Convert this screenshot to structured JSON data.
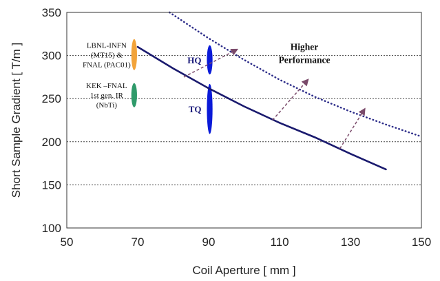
{
  "chart_data": {
    "type": "line",
    "title": "",
    "xlabel": "Coil Aperture [ mm ]",
    "ylabel": "Short Sample Gradient [ T/m ]",
    "xlim": [
      50,
      150
    ],
    "ylim": [
      100,
      350
    ],
    "xticks": [
      "50",
      "70",
      "90",
      "110",
      "130",
      "150"
    ],
    "yticks": [
      "100",
      "150",
      "200",
      "250",
      "300",
      "350"
    ],
    "grid": "horizontal dashed",
    "colors": {
      "solid_line": "#1a1a6e",
      "dotted_line": "#2e2e8a",
      "arrows": "#7a4a6a",
      "orange": "#f2a33a",
      "green": "#2f9a6a",
      "blue": "#0a1ad8"
    },
    "series": [
      {
        "style": "solid",
        "x": [
          70,
          80,
          90,
          100,
          110,
          120,
          130,
          140
        ],
        "y": [
          310,
          285,
          262,
          241,
          222,
          205,
          186,
          168
        ]
      },
      {
        "style": "dotted",
        "x": [
          79,
          90,
          100,
          110,
          120,
          130,
          140,
          150
        ],
        "y": [
          350,
          320,
          295,
          272,
          252,
          235,
          220,
          206
        ]
      }
    ],
    "ellipses": [
      {
        "label": "LBNL-INFN (MT15) & FNAL (PAC01)",
        "lines": [
          "LBNL-INFN",
          "(MT15) &",
          "FNAL (PAC01)"
        ],
        "x": 69,
        "y": 301,
        "x_half": 0.8,
        "y_half": 18,
        "color": "#f2a33a"
      },
      {
        "label": "KEK –FNAL 1st gen. IR (NbTi)",
        "lines": [
          "KEK –FNAL",
          "1st gen. IR",
          "(NbTi)"
        ],
        "x": 69,
        "y": 254,
        "x_half": 0.8,
        "y_half": 14,
        "color": "#2f9a6a"
      },
      {
        "label": "HQ",
        "x": 90.3,
        "y": 295,
        "x_half": 0.8,
        "y_half": 17,
        "color": "#0a1ad8"
      },
      {
        "label": "TQ",
        "x": 90.3,
        "y": 238,
        "x_half": 0.8,
        "y_half": 29,
        "color": "#0a1ad8"
      }
    ],
    "arrows": [
      {
        "from": [
          83,
          275
        ],
        "to": [
          98,
          307
        ]
      },
      {
        "from": [
          108,
          225
        ],
        "to": [
          118,
          272
        ]
      },
      {
        "from": [
          127,
          192
        ],
        "to": [
          134,
          238
        ]
      }
    ],
    "annotations": [
      {
        "lines": [
          "Higher",
          "Performance"
        ],
        "x": 117,
        "y": 300
      }
    ]
  }
}
